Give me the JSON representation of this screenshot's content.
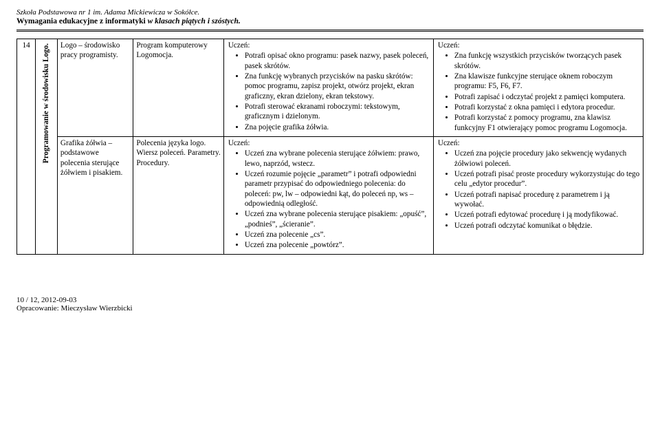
{
  "header": {
    "school": "Szkoła Podstawowa nr 1 im. Adama Mickiewicza w Sokółce.",
    "title_bold": "Wymagania edukacyjne z informatyki ",
    "title_ital": "w klasach piątych i szóstych."
  },
  "table": {
    "row_num": "14",
    "section_title": "Programowanie w środowisku Logo.",
    "r1": {
      "a": "Logo – środowisko pracy programisty.",
      "b": "Program komputerowy Logomocja.",
      "c": {
        "label": "Uczeń:",
        "items": [
          "Potrafi opisać okno programu: pasek nazwy, pasek poleceń, pasek skrótów.",
          "Zna funkcję wybranych przycisków na pasku skrótów: pomoc programu, zapisz projekt, otwórz projekt, ekran graficzny, ekran dzielony, ekran tekstowy.",
          "Potrafi sterować ekranami roboczymi: tekstowym, graficznym i dzielonym.",
          "Zna pojęcie grafika żółwia."
        ]
      },
      "d": {
        "label": "Uczeń:",
        "items": [
          "Zna funkcję wszystkich przycisków tworzących pasek skrótów.",
          "Zna klawisze funkcyjne sterujące oknem roboczym programu: F5, F6, F7.",
          "Potrafi zapisać i odczytać projekt z pamięci komputera.",
          "Potrafi korzystać z okna pamięci i edytora procedur.",
          "Potrafi korzystać z pomocy programu, zna klawisz funkcyjny F1 otwierający pomoc programu Logomocja."
        ]
      }
    },
    "r2": {
      "a": "Grafika żółwia – podstawowe polecenia sterujące żółwiem i pisakiem.",
      "b": "Polecenia języka logo. Wiersz poleceń. Parametry. Procedury.",
      "c": {
        "label": "Uczeń:",
        "items": [
          "Uczeń zna wybrane polecenia sterujące żółwiem: prawo, lewo, naprzód, wstecz.",
          "Uczeń rozumie pojęcie „parametr” i potrafi odpowiedni parametr przypisać do odpowiedniego polecenia: do poleceń: pw, lw – odpowiedni kąt, do poleceń np, ws – odpowiednią odległość.",
          "Uczeń zna wybrane polecenia sterujące pisakiem: „opuść”, „podnieś”, „ścieranie”.",
          "Uczeń zna polecenie „cs”.",
          "Uczeń zna polecenie „powtórz”."
        ]
      },
      "d": {
        "label": "Uczeń:",
        "items": [
          "Uczeń zna pojęcie procedury jako sekwencję wydanych żółwiowi poleceń.",
          "Uczeń potrafi pisać proste procedury wykorzystując do tego celu „edytor procedur”.",
          "Uczeń potrafi napisać procedurę z parametrem i ją wywołać.",
          "Uczeń potrafi edytować procedurę i ją modyfikować.",
          "Uczeń potrafi odczytać komunikat o błędzie."
        ]
      }
    }
  },
  "footer": {
    "page": "10 / 12, 2012-09-03",
    "author": "Opracowanie: Mieczysław Wierzbicki"
  }
}
